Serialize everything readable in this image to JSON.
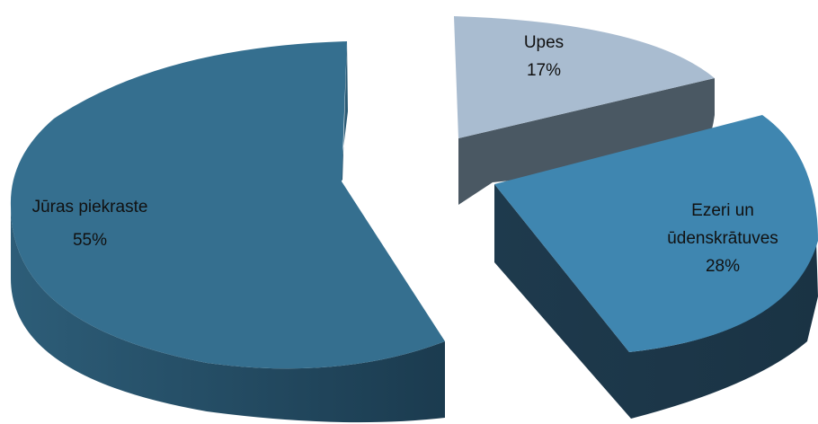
{
  "chart_data": {
    "type": "pie",
    "three_d": true,
    "exploded": true,
    "legend": "none",
    "slices": [
      {
        "label": "Upes",
        "line1": "Upes",
        "line2": "",
        "value": 17,
        "value_label": "17%",
        "color": "#a9bcd0",
        "side_color": "#4a5863"
      },
      {
        "label": "Ezeri un ūdenskrātuves",
        "line1": "Ezeri un",
        "line2": "ūdenskrātuves",
        "value": 28,
        "value_label": "28%",
        "color": "#3f86b0",
        "side_color": "#1f3a4d"
      },
      {
        "label": "Jūras piekraste",
        "line1": "Jūras piekraste",
        "line2": "",
        "value": 55,
        "value_label": "55%",
        "color": "#356f8f",
        "side_color": "#264c63"
      }
    ]
  }
}
